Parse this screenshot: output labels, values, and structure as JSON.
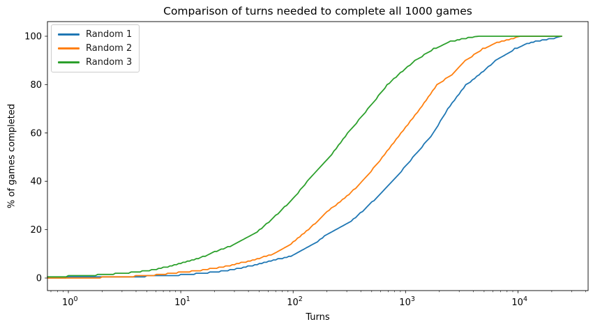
{
  "title": "Comparison of turns needed to complete all 1000 games",
  "chart_data": {
    "type": "line",
    "title": "Comparison of turns needed to complete all 1000 games",
    "xlabel": "Turns",
    "ylabel": "% of games completed",
    "x_scale": "log10",
    "xlim": [
      0.65,
      42000
    ],
    "ylim": [
      -5,
      105
    ],
    "grid": false,
    "legend_position": "upper left",
    "yticks": [
      0,
      20,
      40,
      60,
      80,
      100
    ],
    "xticks": [
      {
        "value": 1,
        "label": "10⁰"
      },
      {
        "value": 10,
        "label": "10¹"
      },
      {
        "value": 100,
        "label": "10²"
      },
      {
        "value": 1000,
        "label": "10³"
      },
      {
        "value": 10000,
        "label": "10⁴"
      }
    ],
    "series": [
      {
        "name": "Random 1",
        "color": "#1f77b4",
        "points_format": "[turns, percent_of_games_completed]",
        "points": [
          [
            0.65,
            0.4
          ],
          [
            1,
            0.5
          ],
          [
            2,
            0.7
          ],
          [
            3,
            0.8
          ],
          [
            5,
            1.0
          ],
          [
            7,
            1.2
          ],
          [
            10,
            1.5
          ],
          [
            15,
            2.2
          ],
          [
            20,
            2.7
          ],
          [
            30,
            3.8
          ],
          [
            50,
            6.0
          ],
          [
            70,
            7.8
          ],
          [
            100,
            9.5
          ],
          [
            150,
            14.0
          ],
          [
            200,
            18.4
          ],
          [
            300,
            22.5
          ],
          [
            360,
            25.2
          ],
          [
            500,
            31.5
          ],
          [
            760,
            40.0
          ],
          [
            1160,
            50.0
          ],
          [
            1760,
            60.0
          ],
          [
            2370,
            70.0
          ],
          [
            3440,
            80.0
          ],
          [
            4720,
            85.0
          ],
          [
            6300,
            90.0
          ],
          [
            9350,
            95.0
          ],
          [
            12000,
            97.0
          ],
          [
            15000,
            98.3
          ],
          [
            18800,
            99.0
          ],
          [
            22000,
            99.6
          ],
          [
            24500,
            100.0
          ]
        ]
      },
      {
        "name": "Random 2",
        "color": "#ff7f0e",
        "points_format": "[turns, percent_of_games_completed]",
        "points": [
          [
            0.65,
            0.3
          ],
          [
            1,
            0.4
          ],
          [
            2,
            0.5
          ],
          [
            3,
            0.8
          ],
          [
            5,
            1.2
          ],
          [
            7,
            1.8
          ],
          [
            10,
            2.6
          ],
          [
            15,
            3.4
          ],
          [
            20,
            4.3
          ],
          [
            30,
            5.8
          ],
          [
            50,
            8.4
          ],
          [
            70,
            10.5
          ],
          [
            100,
            15.0
          ],
          [
            150,
            22.0
          ],
          [
            200,
            27.6
          ],
          [
            300,
            34.0
          ],
          [
            410,
            40.0
          ],
          [
            620,
            50.0
          ],
          [
            910,
            60.0
          ],
          [
            1340,
            70.0
          ],
          [
            1900,
            80.0
          ],
          [
            2700,
            85.0
          ],
          [
            3400,
            90.0
          ],
          [
            4860,
            95.0
          ],
          [
            6500,
            97.5
          ],
          [
            8700,
            99.2
          ],
          [
            10500,
            100.0
          ],
          [
            24500,
            100.0
          ]
        ]
      },
      {
        "name": "Random 3",
        "color": "#2ca02c",
        "points_format": "[turns, percent_of_games_completed]",
        "points": [
          [
            0.65,
            0.8
          ],
          [
            1,
            1.0
          ],
          [
            2,
            1.6
          ],
          [
            3,
            2.2
          ],
          [
            5,
            3.2
          ],
          [
            7,
            4.5
          ],
          [
            10,
            6.3
          ],
          [
            15,
            8.6
          ],
          [
            20,
            11.0
          ],
          [
            30,
            14.0
          ],
          [
            50,
            20.0
          ],
          [
            70,
            26.0
          ],
          [
            100,
            33.0
          ],
          [
            133,
            40.0
          ],
          [
            210,
            50.0
          ],
          [
            305,
            60.0
          ],
          [
            460,
            70.0
          ],
          [
            685,
            80.0
          ],
          [
            900,
            85.0
          ],
          [
            1210,
            90.0
          ],
          [
            1780,
            95.0
          ],
          [
            2400,
            97.8
          ],
          [
            3300,
            99.4
          ],
          [
            4500,
            100.0
          ],
          [
            24500,
            100.0
          ]
        ]
      }
    ]
  }
}
